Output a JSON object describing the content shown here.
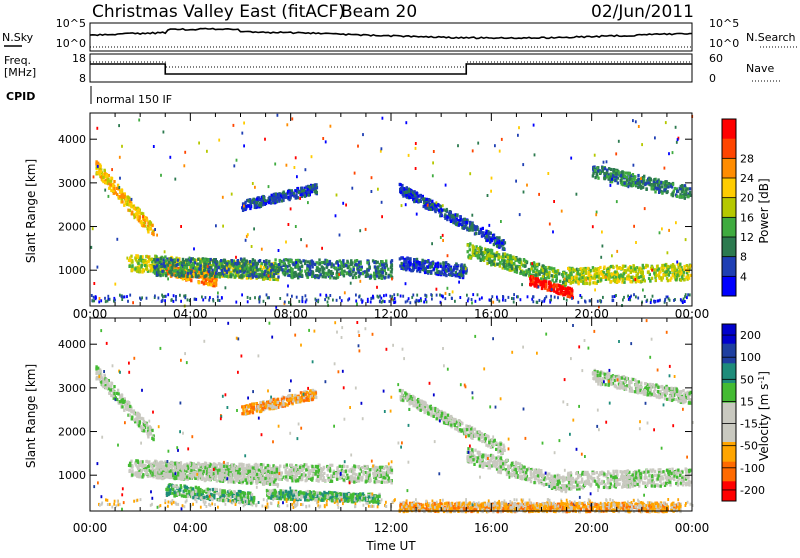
{
  "header": {
    "title": "Christmas Valley East (fitACF)",
    "beam": "Beam 20",
    "date": "02/Jun/2011"
  },
  "top_panels": {
    "nsky_label": "N.Sky",
    "nsearch_label": "N.Search",
    "noise_ticks_left": [
      "10^5",
      "10^0"
    ],
    "noise_ticks_right": [
      "10^5",
      "10^0"
    ],
    "freq_label_line1": "Freq.",
    "freq_label_line2": "[MHz]",
    "freq_ticks": [
      "18",
      "8"
    ],
    "nave_label": "Nave",
    "nave_ticks": [
      "60",
      "0"
    ],
    "cpid_label": "CPID",
    "cpid_text": "normal 150 IF"
  },
  "colors": {
    "power": [
      "#0000ff",
      "#1f3fb4",
      "#2c7a4f",
      "#3fab3f",
      "#b5c800",
      "#ffcc00",
      "#ff8c00",
      "#ff4500",
      "#ff0000"
    ],
    "velocity": [
      "#ff0000",
      "#ff6a00",
      "#ffa500",
      "#cccccc",
      "#cccccc",
      "#44bb33",
      "#1e8c7a",
      "#1e3fa0",
      "#0000cc"
    ],
    "velocity_gray": "#c9c9c0"
  },
  "chart_data": [
    {
      "type": "heatmap",
      "title": "Power",
      "ylabel": "Slant Range [km]",
      "xlabel": "",
      "xlim_hours": [
        0,
        24
      ],
      "ylim": [
        180,
        4600
      ],
      "y_ticks": [
        1000,
        2000,
        3000,
        4000
      ],
      "x_ticks": [
        "00:00",
        "04:00",
        "08:00",
        "12:00",
        "16:00",
        "20:00",
        "00:00"
      ],
      "colorbar": {
        "label": "Power [dB]",
        "ticks": [
          "4",
          "8",
          "12",
          "16",
          "20",
          "24",
          "28"
        ]
      },
      "bands": [
        {
          "t": [
            0.2,
            2.5
          ],
          "r": [
            3400,
            1900
          ],
          "w": 300,
          "level": 5
        },
        {
          "t": [
            1.5,
            7.5
          ],
          "r": [
            1200,
            1000
          ],
          "w": 380,
          "level": 4
        },
        {
          "t": [
            3.0,
            5.0
          ],
          "r": [
            1050,
            800
          ],
          "w": 280,
          "level": 6
        },
        {
          "t": [
            2.5,
            12.0
          ],
          "r": [
            1100,
            1050
          ],
          "w": 420,
          "level": 2
        },
        {
          "t": [
            6.0,
            9.0
          ],
          "r": [
            2500,
            2900
          ],
          "w": 220,
          "level": 1
        },
        {
          "t": [
            12.3,
            16.5
          ],
          "r": [
            2900,
            1600
          ],
          "w": 240,
          "level": 1
        },
        {
          "t": [
            12.3,
            15.0
          ],
          "r": [
            1200,
            1000
          ],
          "w": 300,
          "level": 1
        },
        {
          "t": [
            15.0,
            19.0
          ],
          "r": [
            1500,
            800
          ],
          "w": 350,
          "level": 3
        },
        {
          "t": [
            17.5,
            19.2
          ],
          "r": [
            800,
            500
          ],
          "w": 200,
          "level": 8
        },
        {
          "t": [
            19.0,
            23.9
          ],
          "r": [
            900,
            1000
          ],
          "w": 380,
          "level": 4
        },
        {
          "t": [
            20.0,
            23.9
          ],
          "r": [
            3300,
            2800
          ],
          "w": 300,
          "level": 2
        }
      ]
    },
    {
      "type": "heatmap",
      "title": "Velocity",
      "ylabel": "Slant Range [km]",
      "xlabel": "Time UT",
      "xlim_hours": [
        0,
        24
      ],
      "ylim": [
        180,
        4600
      ],
      "y_ticks": [
        1000,
        2000,
        3000,
        4000
      ],
      "x_ticks": [
        "00:00",
        "04:00",
        "08:00",
        "12:00",
        "16:00",
        "20:00",
        "00:00"
      ],
      "colorbar": {
        "label": "Velocity [m s^-1]",
        "ticks": [
          "200",
          "100",
          "50",
          "15",
          "-15",
          "-50",
          "-100",
          "-200"
        ]
      },
      "bands": [
        {
          "t": [
            0.2,
            2.5
          ],
          "r": [
            3400,
            1900
          ],
          "w": 300,
          "level": 4
        },
        {
          "t": [
            1.5,
            7.5
          ],
          "r": [
            1200,
            1000
          ],
          "w": 380,
          "level": 4
        },
        {
          "t": [
            3.0,
            6.5
          ],
          "r": [
            700,
            500
          ],
          "w": 260,
          "level": 5
        },
        {
          "t": [
            7.0,
            11.5
          ],
          "r": [
            600,
            500
          ],
          "w": 200,
          "level": 5
        },
        {
          "t": [
            2.5,
            12.0
          ],
          "r": [
            1150,
            1050
          ],
          "w": 380,
          "level": 4
        },
        {
          "t": [
            6.0,
            9.0
          ],
          "r": [
            2500,
            2900
          ],
          "w": 220,
          "level": 2
        },
        {
          "t": [
            12.3,
            16.5
          ],
          "r": [
            2900,
            1600
          ],
          "w": 240,
          "level": 4
        },
        {
          "t": [
            12.3,
            23.5
          ],
          "r": [
            300,
            300
          ],
          "w": 200,
          "level": 2
        },
        {
          "t": [
            15.0,
            19.0
          ],
          "r": [
            1500,
            800
          ],
          "w": 350,
          "level": 4
        },
        {
          "t": [
            19.0,
            23.9
          ],
          "r": [
            900,
            1000
          ],
          "w": 380,
          "level": 4
        },
        {
          "t": [
            20.0,
            23.9
          ],
          "r": [
            3300,
            2800
          ],
          "w": 300,
          "level": 4
        }
      ]
    }
  ]
}
